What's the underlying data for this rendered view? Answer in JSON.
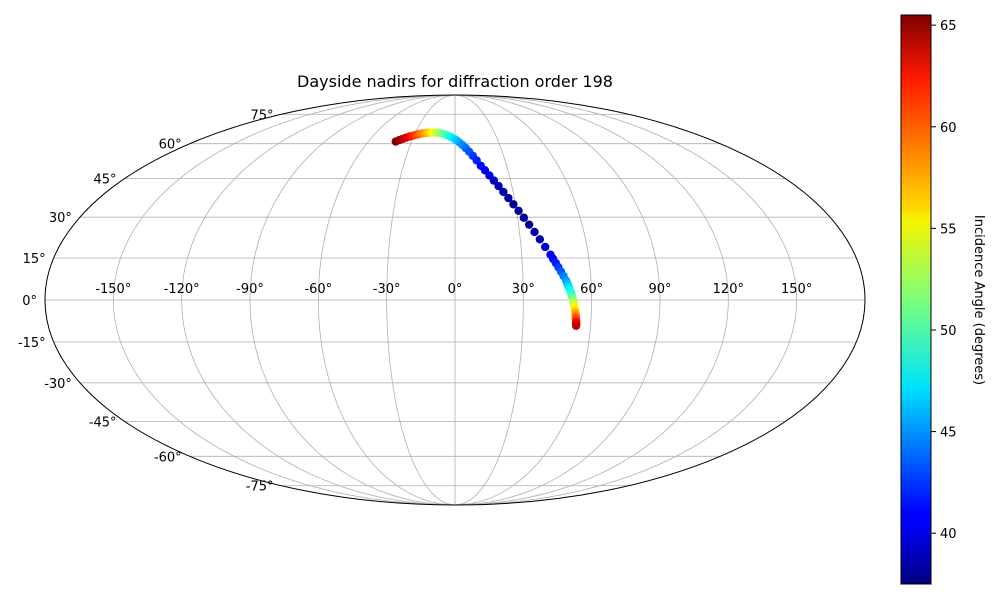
{
  "chart_data": {
    "type": "scatter",
    "projection": "mollweide",
    "title": "Dayside nadirs for diffraction order 198",
    "longitude_tick_labels": [
      "-150°",
      "-120°",
      "-90°",
      "-60°",
      "-30°",
      "0°",
      "30°",
      "60°",
      "90°",
      "120°",
      "150°"
    ],
    "latitude_tick_labels": [
      "-75°",
      "-60°",
      "-45°",
      "-30°",
      "-15°",
      "0°",
      "15°",
      "30°",
      "45°",
      "60°",
      "75°"
    ],
    "longitude_ticks": [
      -150,
      -120,
      -90,
      -60,
      -30,
      0,
      30,
      60,
      90,
      120,
      150
    ],
    "latitude_ticks": [
      -75,
      -60,
      -45,
      -30,
      -15,
      0,
      15,
      30,
      45,
      60,
      75
    ],
    "xlim": [
      -180,
      180
    ],
    "ylim": [
      -90,
      90
    ],
    "grid": true,
    "colorbar": {
      "label": "Incidence Angle (degrees)",
      "colormap": "jet",
      "range": [
        37.5,
        65.5
      ],
      "ticks": [
        40,
        45,
        50,
        55,
        60,
        65
      ],
      "tick_labels": [
        "40",
        "45",
        "50",
        "55",
        "60",
        "65"
      ],
      "placement": "right"
    },
    "series": [
      {
        "lon": [
          -41,
          -39,
          -37,
          -35,
          -33,
          -31,
          -29,
          -27,
          -25,
          -23,
          -21,
          -19,
          -17,
          -15,
          -13,
          -11,
          -9,
          -7,
          -5,
          -3,
          -1,
          1,
          3,
          5,
          7,
          9,
          11,
          13,
          15,
          17,
          19,
          21,
          23,
          25,
          27,
          29,
          31,
          33,
          35,
          37,
          39,
          41,
          43,
          44,
          45,
          46,
          47,
          48,
          49,
          49.5,
          50,
          50.5,
          51,
          51.3,
          51.6,
          51.9,
          52.1,
          52.3,
          52.5,
          52.7,
          52.9,
          53,
          53.1,
          53.2,
          53.3,
          53.4,
          53.5,
          53.5,
          53.6,
          53.6
        ],
        "lat": [
          61,
          61.7,
          62.3,
          62.9,
          63.4,
          63.8,
          64.2,
          64.5,
          64.8,
          65,
          65.2,
          65.3,
          65.3,
          65.3,
          65.2,
          65.0,
          64.7,
          64.3,
          63.8,
          63.2,
          62.5,
          61.6,
          60.6,
          59.4,
          58.0,
          56.4,
          54.6,
          52.6,
          50.3,
          48.4,
          46.3,
          44.2,
          42.0,
          39.7,
          37.3,
          34.9,
          32.4,
          29.8,
          27.2,
          24.5,
          21.8,
          19.0,
          16.2,
          14.7,
          13.2,
          11.7,
          10.1,
          8.5,
          6.9,
          5.8,
          4.7,
          3.6,
          2.5,
          1.6,
          0.7,
          -0.2,
          -1.0,
          -1.8,
          -2.6,
          -3.3,
          -4.0,
          -4.7,
          -5.3,
          -5.9,
          -6.5,
          -7.1,
          -7.7,
          -8.2,
          -8.7,
          -9.2
        ],
        "incidence": [
          65.5,
          64.8,
          64.0,
          63.0,
          62.0,
          61.0,
          60.2,
          59.3,
          58.5,
          57.7,
          56.8,
          56.0,
          55.0,
          54.0,
          53.0,
          52.0,
          51.2,
          50.2,
          49.3,
          48.4,
          47.5,
          46.6,
          45.7,
          44.9,
          44.1,
          43.3,
          42.6,
          41.9,
          41.2,
          40.6,
          40.0,
          39.4,
          39.0,
          38.6,
          38.3,
          38.1,
          38.0,
          38.0,
          38.1,
          38.4,
          38.9,
          39.6,
          40.5,
          41.1,
          41.8,
          42.6,
          43.5,
          44.4,
          45.4,
          46.2,
          47.1,
          48.0,
          49.0,
          49.9,
          50.9,
          51.8,
          52.8,
          53.7,
          54.6,
          55.5,
          56.4,
          57.2,
          58.0,
          58.8,
          59.6,
          60.4,
          61.2,
          62.0,
          62.8,
          63.6
        ]
      }
    ]
  }
}
